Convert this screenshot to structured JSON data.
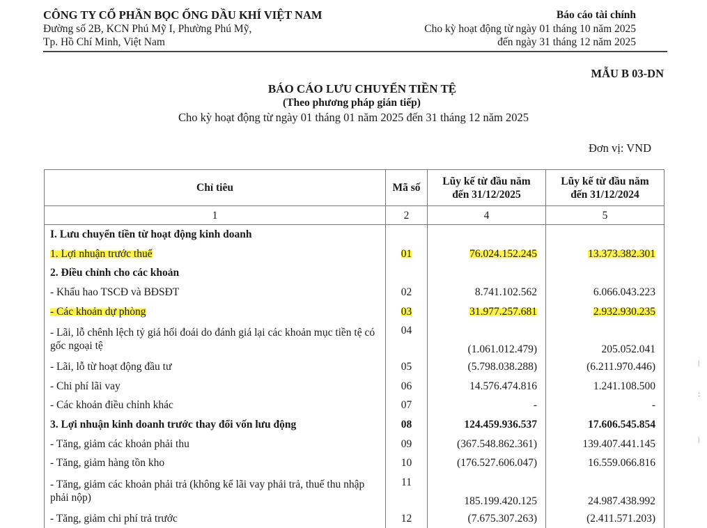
{
  "header": {
    "company": "CÔNG TY CỔ PHẦN BỌC ỐNG DẦU KHÍ VIỆT NAM",
    "address1": "Đường số 2B, KCN Phú Mỹ I, Phường Phú Mỹ,",
    "address2": "Tp. Hồ Chí Minh, Việt Nam",
    "report_type": "Báo cáo tài chính",
    "period1": "Cho kỳ hoạt động từ ngày 01 tháng  10 năm 2025",
    "period2": "đến ngày 31 tháng 12 năm 2025"
  },
  "form_code": "MẪU B 03-DN",
  "title": "BÁO CÁO LƯU CHUYỂN TIỀN TỆ",
  "subtitle": "(Theo phương pháp gián tiếp)",
  "period": "Cho kỳ hoạt động từ ngày 01 tháng 01 năm 2025 đến 31 tháng 12 năm 2025",
  "unit": "Đơn vị: VND",
  "table": {
    "headers": [
      "Chỉ tiêu",
      "Mã số",
      "Lũy kế từ đầu năm đến 31/12/2025",
      "Lũy kế từ đầu năm đến 31/12/2024"
    ],
    "header_lines": {
      "c4a": "Lũy kế từ đầu năm",
      "c4b": "đến 31/12/2025",
      "c5a": "Lũy kế từ đầu năm",
      "c5b": "đến 31/12/2024"
    },
    "col_numbers": [
      "1",
      "2",
      "4",
      "5"
    ],
    "rows": [
      {
        "label": "I. Lưu chuyển tiền từ hoạt động kinh doanh",
        "code": "",
        "v2025": "",
        "v2024": "",
        "bold": true
      },
      {
        "label": "1. Lợi nhuận trước thuế",
        "code": "01",
        "v2025": "76.024.152.245",
        "v2024": "13.373.382.301",
        "highlight": true
      },
      {
        "label": "2. Điều chỉnh cho các khoản",
        "code": "",
        "v2025": "",
        "v2024": "",
        "bold": true
      },
      {
        "label": "- Khấu hao TSCĐ và BĐSĐT",
        "code": "02",
        "v2025": "8.741.102.562",
        "v2024": "6.066.043.223"
      },
      {
        "label": "- Các khoản dự phòng",
        "code": "03",
        "v2025": "31.977.257.681",
        "v2024": "2.932.930.235",
        "highlight": true
      },
      {
        "label": "- Lãi, lỗ chênh lệch tỷ giá hối đoái do đánh giá lại các khoản mục tiền tệ có gốc ngoại tệ",
        "code": "04",
        "v2025": "(1.061.012.479)",
        "v2024": "205.052.041",
        "two": true
      },
      {
        "label": "- Lãi, lỗ từ hoạt động đầu tư",
        "code": "05",
        "v2025": "(5.798.038.288)",
        "v2024": "(6.211.970.446)"
      },
      {
        "label": "- Chi phí lãi vay",
        "code": "06",
        "v2025": "14.576.474.816",
        "v2024": "1.241.108.500"
      },
      {
        "label": "- Các khoản điều chỉnh khác",
        "code": "07",
        "v2025": "-",
        "v2024": "-"
      },
      {
        "label": "3. Lợi nhuận kinh doanh trước thay đổi vốn lưu động",
        "code": "08",
        "v2025": "124.459.936.537",
        "v2024": "17.606.545.854",
        "bold": true
      },
      {
        "label": "- Tăng, giảm các khoản phải thu",
        "code": "09",
        "v2025": "(367.548.862.361)",
        "v2024": "139.407.441.145"
      },
      {
        "label": "- Tăng, giảm hàng tồn kho",
        "code": "10",
        "v2025": "(176.527.606.047)",
        "v2024": "16.559.066.816"
      },
      {
        "label": "- Tăng, giảm các khoản phải trả (không kể lãi vay phải trả, thuế thu nhập phải nộp)",
        "code": "11",
        "v2025": "185.199.420.125",
        "v2024": "24.987.438.992",
        "two": true
      },
      {
        "label": "- Tăng, giảm chi phí trả trước",
        "code": "12",
        "v2025": "(7.675.307.263)",
        "v2024": "(2.411.571.203)"
      }
    ]
  },
  "colors": {
    "highlight": "#fbf24a",
    "stamp": "#e06060"
  }
}
